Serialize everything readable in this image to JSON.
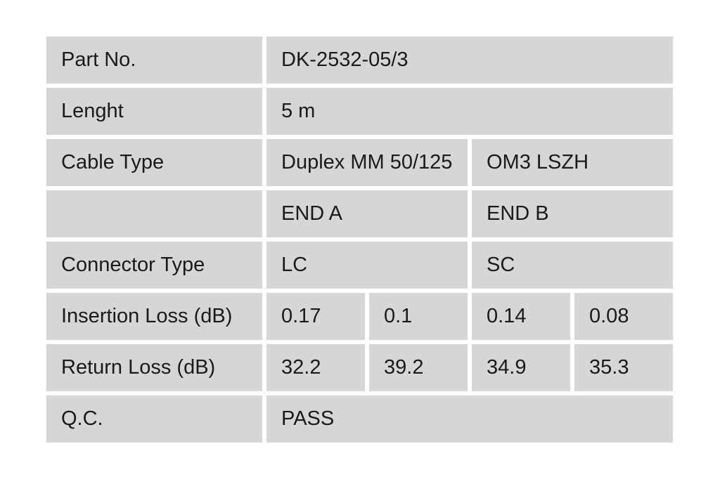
{
  "colors": {
    "cell_bg": "#d6d6d6",
    "page_bg": "#ffffff",
    "text": "#1a1a1a"
  },
  "rows": {
    "part_no": {
      "label": "Part No.",
      "value": "DK-2532-05/3"
    },
    "length": {
      "label": "Lenght",
      "value": "5 m"
    },
    "cable_type": {
      "label": "Cable Type",
      "end_a": "Duplex MM 50/125",
      "end_b": "OM3 LSZH"
    },
    "ends_header": {
      "label": "",
      "end_a": "END A",
      "end_b": "END B"
    },
    "connector_type": {
      "label": "Connector Type",
      "end_a": "LC",
      "end_b": "SC"
    },
    "insertion_loss": {
      "label": "Insertion Loss (dB)",
      "end_a_1": "0.17",
      "end_a_2": "0.1",
      "end_b_1": "0.14",
      "end_b_2": "0.08"
    },
    "return_loss": {
      "label": "Return Loss (dB)",
      "end_a_1": "32.2",
      "end_a_2": "39.2",
      "end_b_1": "34.9",
      "end_b_2": "35.3"
    },
    "qc": {
      "label": "Q.C.",
      "value": "PASS"
    }
  }
}
